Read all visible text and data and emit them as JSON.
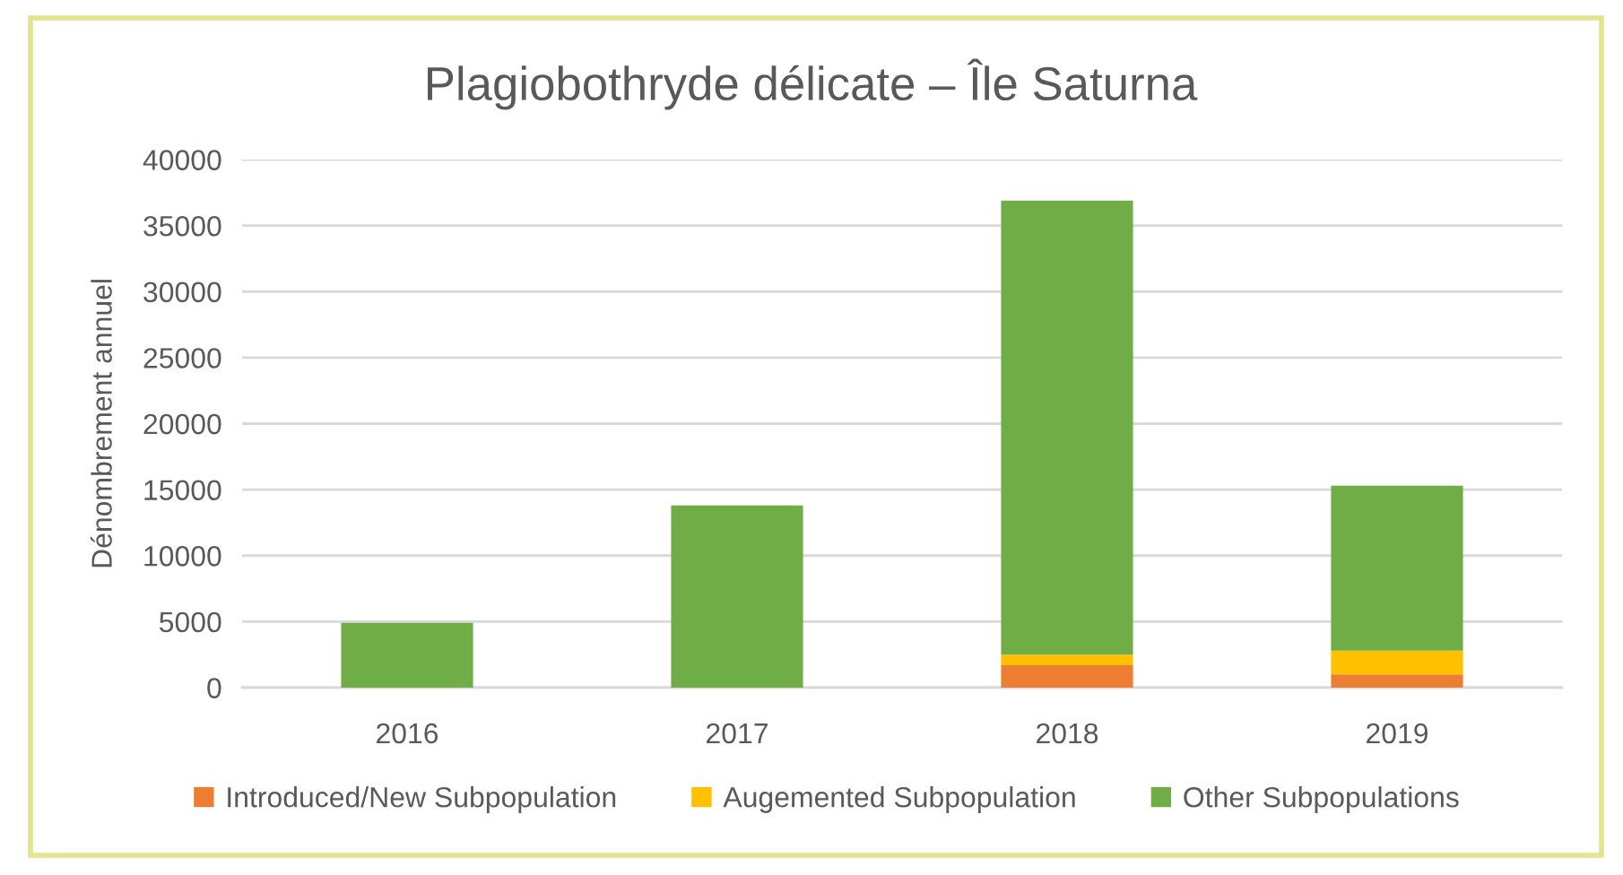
{
  "chart_data": {
    "type": "bar",
    "title": "Plagiobothryde délicate – Île Saturna",
    "ylabel": "Dénombrement annuel",
    "categories": [
      "2016",
      "2017",
      "2018",
      "2019"
    ],
    "stacked": true,
    "series": [
      {
        "name": "Introduced/New Subpopulation",
        "color": "#ed7d31",
        "values": [
          0,
          0,
          1700,
          1000
        ]
      },
      {
        "name": "Augemented Subpopulation",
        "color": "#ffc000",
        "values": [
          0,
          0,
          800,
          1800
        ]
      },
      {
        "name": "Other Subpopulations",
        "color": "#70ad47",
        "values": [
          4900,
          13800,
          34400,
          12500
        ]
      }
    ],
    "ylim": [
      0,
      40000
    ],
    "yticks": [
      0,
      5000,
      10000,
      15000,
      20000,
      25000,
      30000,
      35000,
      40000
    ],
    "grid": "y",
    "legend": "bottom"
  }
}
